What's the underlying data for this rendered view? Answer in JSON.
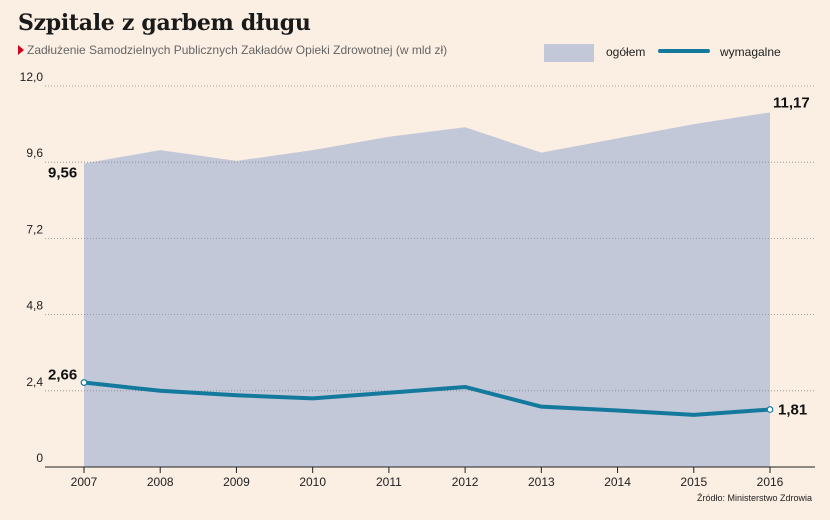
{
  "title": "Szpitale z garbem długu",
  "subtitle": "Zadłużenie Samodzielnych Publicznych Zakładów Opieki Zdrowotnej (w mld zł)",
  "source": "Źródło: Ministerstwo Zdrowia",
  "colors": {
    "area": "#c3c8d8",
    "line": "#137a9e",
    "background": "#fbeee3",
    "marker": "#d0021b"
  },
  "chart_data": {
    "type": "area",
    "categories": [
      "2007",
      "2008",
      "2009",
      "2010",
      "2011",
      "2012",
      "2013",
      "2014",
      "2015",
      "2016"
    ],
    "series": [
      {
        "name": "ogółem",
        "type": "area",
        "values": [
          9.56,
          9.98,
          9.64,
          9.98,
          10.4,
          10.7,
          9.9,
          10.35,
          10.8,
          11.17
        ]
      },
      {
        "name": "wymagalne",
        "type": "line",
        "values": [
          2.66,
          2.4,
          2.26,
          2.16,
          2.34,
          2.52,
          1.9,
          1.78,
          1.64,
          1.81
        ]
      }
    ],
    "yticks": [
      "0",
      "2,4",
      "4,8",
      "7,2",
      "9,6",
      "12,0"
    ],
    "ylim": [
      0,
      12
    ],
    "grid": true,
    "legend_position": "top-right",
    "data_labels": [
      {
        "series": "ogółem",
        "index": 0,
        "text": "9,56"
      },
      {
        "series": "ogółem",
        "index": 9,
        "text": "11,17"
      },
      {
        "series": "wymagalne",
        "index": 0,
        "text": "2,66"
      },
      {
        "series": "wymagalne",
        "index": 9,
        "text": "1,81"
      }
    ]
  }
}
